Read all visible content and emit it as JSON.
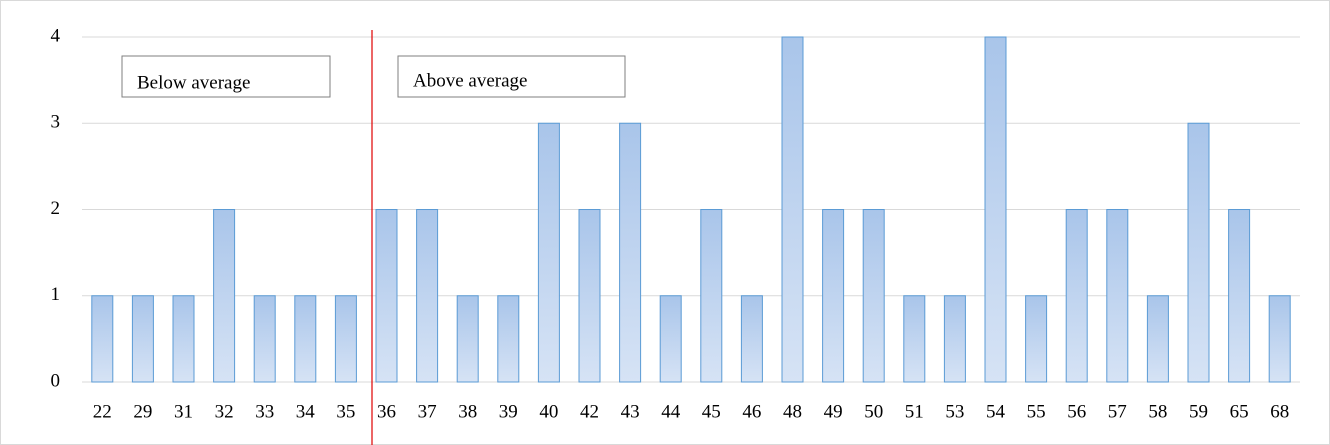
{
  "chart_data": {
    "type": "bar",
    "categories": [
      "22",
      "29",
      "31",
      "32",
      "33",
      "34",
      "35",
      "36",
      "37",
      "38",
      "39",
      "40",
      "42",
      "43",
      "44",
      "45",
      "46",
      "48",
      "49",
      "50",
      "51",
      "53",
      "54",
      "55",
      "56",
      "57",
      "58",
      "59",
      "65",
      "68"
    ],
    "values": [
      1,
      1,
      1,
      2,
      1,
      1,
      1,
      2,
      2,
      1,
      1,
      3,
      2,
      3,
      1,
      2,
      1,
      4,
      2,
      2,
      1,
      1,
      4,
      1,
      2,
      2,
      1,
      3,
      2,
      1
    ],
    "color": "#a9c5ea",
    "edgecolor": "#5b9bd5",
    "divider_color": "#e00000",
    "ylim": [
      0,
      4
    ],
    "yticks": [
      0,
      1,
      2,
      3,
      4
    ],
    "grid": true,
    "annotations": [
      "Below average",
      "Above average"
    ]
  }
}
